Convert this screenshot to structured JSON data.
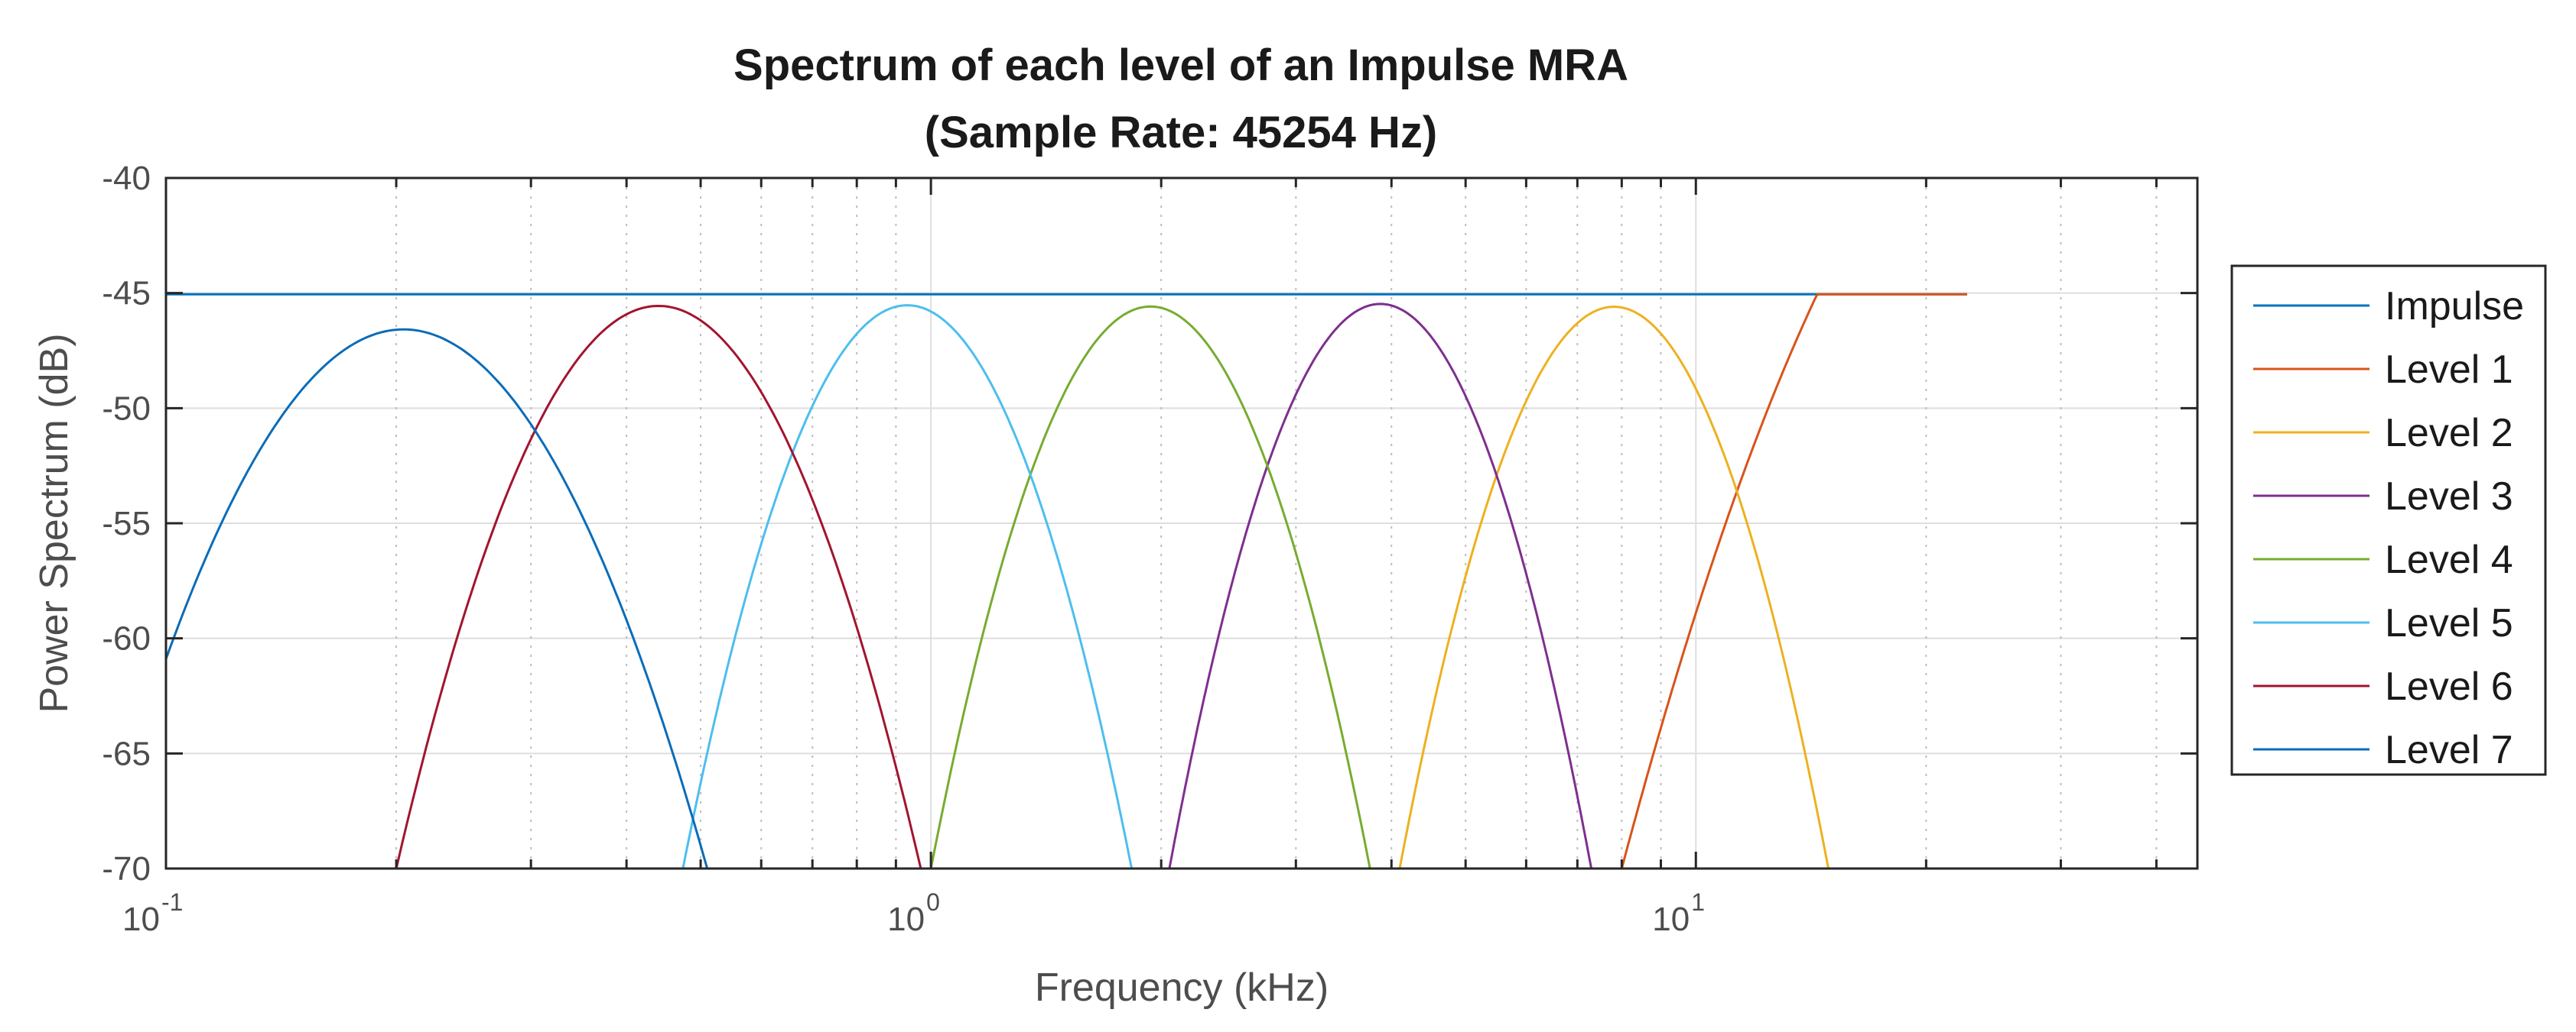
{
  "chart_data": {
    "type": "line",
    "title": [
      "Spectrum  of each level of an Impulse MRA",
      "(Sample Rate: 45254 Hz)"
    ],
    "xlabel": "Frequency (kHz)",
    "ylabel": "Power Spectrum (dB)",
    "xscale": "log",
    "xlim": [
      0.1,
      45.254
    ],
    "ylim": [
      -70,
      -40
    ],
    "x_ticks": [
      {
        "value": 0.1,
        "base": "10",
        "exp": "-1"
      },
      {
        "value": 1,
        "base": "10",
        "exp": "0"
      },
      {
        "value": 10,
        "base": "10",
        "exp": "1"
      }
    ],
    "y_ticks": [
      "-40",
      "-45",
      "-50",
      "-55",
      "-60",
      "-65",
      "-70"
    ],
    "y_tick_values": [
      -40,
      -45,
      -50,
      -55,
      -60,
      -65,
      -70
    ],
    "grid": true,
    "minor_grid": true,
    "legend_position": "outside-right",
    "series": [
      {
        "name": "Impulse",
        "color": "#0072BD",
        "kind": "flat",
        "level": -45.05,
        "x_end": 22.627
      },
      {
        "name": "Level 1",
        "color": "#D95319",
        "kind": "highpass",
        "plateau": -45.05,
        "x_knee": 16.4,
        "fit_x": [
          8.0,
          10.0,
          12.5
        ],
        "fit_y": [
          -70,
          -58.9,
          -49.8
        ]
      },
      {
        "name": "Level 2",
        "color": "#EDB120",
        "kind": "band",
        "fit_x": [
          4.1,
          7.9,
          14.9
        ],
        "fit_y": [
          -70,
          -45.6,
          -70
        ]
      },
      {
        "name": "Level 3",
        "color": "#7E2F8E",
        "kind": "band",
        "fit_x": [
          2.05,
          4.05,
          7.3
        ],
        "fit_y": [
          -70,
          -45.6,
          -70
        ]
      },
      {
        "name": "Level 4",
        "color": "#77AC30",
        "kind": "band",
        "fit_x": [
          1.0,
          1.97,
          3.75
        ],
        "fit_y": [
          -70,
          -45.6,
          -70
        ]
      },
      {
        "name": "Level 5",
        "color": "#4DBEEE",
        "kind": "band",
        "fit_x": [
          0.474,
          1.0,
          1.83
        ],
        "fit_y": [
          -70,
          -45.8,
          -70
        ]
      },
      {
        "name": "Level 6",
        "color": "#A2142F",
        "kind": "band",
        "fit_x": [
          0.2,
          0.51,
          0.97
        ],
        "fit_y": [
          -70,
          -46.4,
          -70
        ]
      },
      {
        "name": "Level 7",
        "color": "#0B6CB8",
        "kind": "band",
        "fit_x": [
          0.1,
          0.26,
          0.51
        ],
        "fit_y": [
          -60.9,
          -48.2,
          -70
        ]
      }
    ]
  }
}
